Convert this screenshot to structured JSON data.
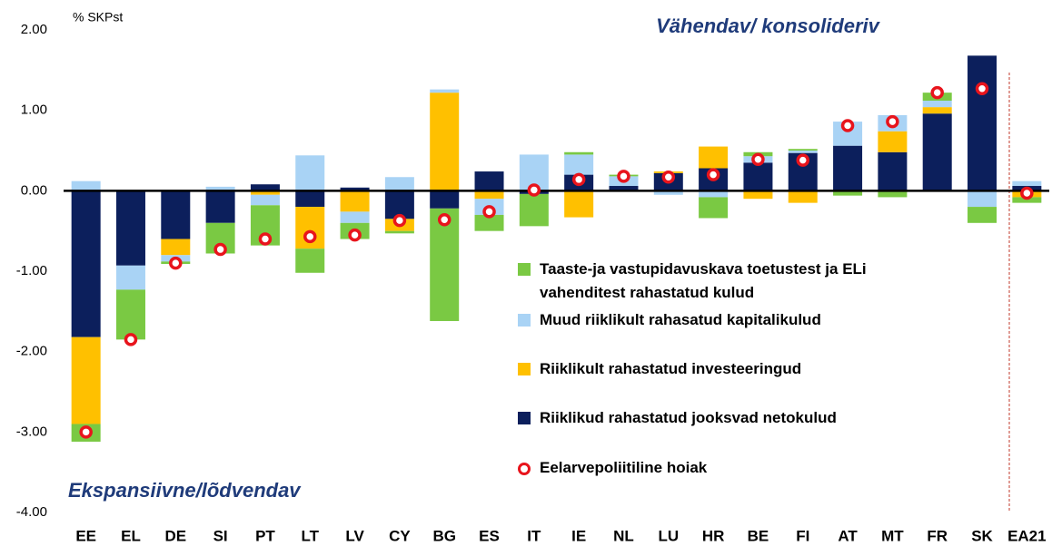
{
  "chart_data": {
    "type": "stacked_bar",
    "y_axis_label": "% SKPst",
    "annotations": [
      "Vähendav/ konsolideriv",
      "Ekspansiivne/lõdvendav"
    ],
    "categories": [
      "EE",
      "EL",
      "DE",
      "SI",
      "PT",
      "LT",
      "LV",
      "CY",
      "BG",
      "ES",
      "IT",
      "IE",
      "NL",
      "LU",
      "HR",
      "BE",
      "FI",
      "AT",
      "MT",
      "FR",
      "SK",
      "EA21"
    ],
    "series": [
      {
        "name": "Taaste-ja vastupidavuskava toetustest ja ELi vahenditest rahastatud kulud",
        "color": "#7ac943",
        "values": [
          -0.22,
          -0.62,
          -0.03,
          -0.38,
          -0.5,
          -0.3,
          -0.2,
          -0.03,
          -1.4,
          -0.2,
          -0.4,
          0.03,
          0.02,
          0,
          -0.26,
          0.05,
          0.02,
          -0.06,
          -0.08,
          0.1,
          -0.2,
          -0.07
        ]
      },
      {
        "name": "Muud riiklikult rahasatud kapitalikulud",
        "color": "#a9d3f5",
        "values": [
          0.12,
          -0.3,
          -0.08,
          0.05,
          -0.13,
          0.44,
          -0.14,
          0.17,
          0.04,
          -0.2,
          0.45,
          0.25,
          0.12,
          -0.05,
          -0.08,
          0.08,
          0.03,
          0.3,
          0.2,
          0.08,
          -0.2,
          0.06
        ]
      },
      {
        "name": "Riiklikult rahastatud investeeringud",
        "color": "#ffc000",
        "values": [
          -1.08,
          0,
          -0.2,
          0,
          -0.05,
          -0.52,
          -0.26,
          -0.15,
          1.22,
          -0.1,
          0,
          -0.33,
          0,
          0.02,
          0.27,
          -0.1,
          -0.15,
          0,
          0.26,
          0.08,
          0,
          -0.08
        ]
      },
      {
        "name": "Riiklikud rahastatud jooksvad netokulud",
        "color": "#0c1f5c",
        "values": [
          -1.82,
          -0.93,
          -0.6,
          -0.4,
          0.08,
          -0.2,
          0.04,
          -0.35,
          -0.22,
          0.24,
          -0.04,
          0.2,
          0.06,
          0.22,
          0.28,
          0.35,
          0.47,
          0.56,
          0.48,
          0.96,
          1.68,
          0.06
        ]
      }
    ],
    "markers": {
      "name": "Eelarvepoliitiline hoiak",
      "color": "#e8141c",
      "values": [
        -3.0,
        -1.85,
        -0.9,
        -0.73,
        -0.6,
        -0.57,
        -0.55,
        -0.37,
        -0.36,
        -0.26,
        0.01,
        0.14,
        0.18,
        0.17,
        0.2,
        0.39,
        0.38,
        0.81,
        0.86,
        1.22,
        1.27,
        -0.03
      ]
    },
    "ylim": [
      -4,
      2
    ],
    "yticks": [
      {
        "value": -4,
        "label": "-4.00"
      },
      {
        "value": -3,
        "label": "-3.00"
      },
      {
        "value": -2,
        "label": "-2.00"
      },
      {
        "value": -1,
        "label": "-1.00"
      },
      {
        "value": 0,
        "label": "0.00"
      },
      {
        "value": 1,
        "label": "1.00"
      },
      {
        "value": 2,
        "label": "2.00"
      }
    ]
  }
}
